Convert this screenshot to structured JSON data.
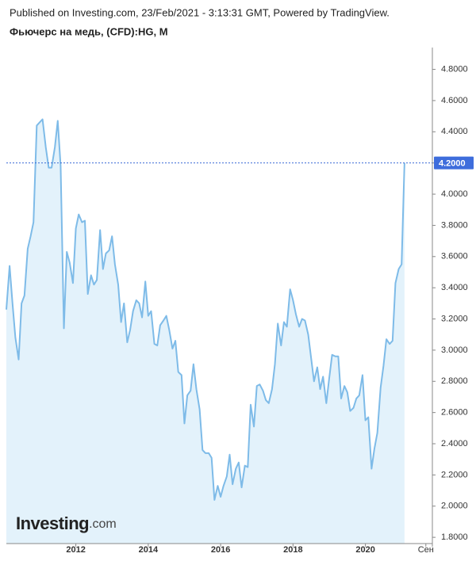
{
  "header": {
    "published": "Published on Investing.com, 23/Feb/2021 - 3:13:31 GMT, Powered by TradingView.",
    "title": "Фьючерс на медь, (CFD):HG, M"
  },
  "watermark": [
    "Investing",
    ".com"
  ],
  "chart_data": {
    "type": "line",
    "fill_area": true,
    "color": "#7ebbe8",
    "fill_color": "#e3f2fb",
    "x": [
      2010.08,
      2010.17,
      2010.25,
      2010.33,
      2010.42,
      2010.5,
      2010.58,
      2010.67,
      2010.75,
      2010.83,
      2010.92,
      2011,
      2011.08,
      2011.17,
      2011.25,
      2011.33,
      2011.42,
      2011.5,
      2011.58,
      2011.67,
      2011.75,
      2011.83,
      2011.92,
      2012,
      2012.08,
      2012.17,
      2012.25,
      2012.33,
      2012.42,
      2012.5,
      2012.58,
      2012.67,
      2012.75,
      2012.83,
      2012.92,
      2013,
      2013.08,
      2013.17,
      2013.25,
      2013.33,
      2013.42,
      2013.5,
      2013.58,
      2013.67,
      2013.75,
      2013.83,
      2013.92,
      2014,
      2014.08,
      2014.17,
      2014.25,
      2014.33,
      2014.42,
      2014.5,
      2014.58,
      2014.67,
      2014.75,
      2014.83,
      2014.92,
      2015,
      2015.08,
      2015.17,
      2015.25,
      2015.33,
      2015.42,
      2015.5,
      2015.58,
      2015.67,
      2015.75,
      2015.83,
      2015.92,
      2016,
      2016.08,
      2016.17,
      2016.25,
      2016.33,
      2016.42,
      2016.5,
      2016.58,
      2016.67,
      2016.75,
      2016.83,
      2016.92,
      2017,
      2017.08,
      2017.17,
      2017.25,
      2017.33,
      2017.42,
      2017.5,
      2017.58,
      2017.67,
      2017.75,
      2017.83,
      2017.92,
      2018,
      2018.08,
      2018.17,
      2018.25,
      2018.33,
      2018.42,
      2018.5,
      2018.58,
      2018.67,
      2018.75,
      2018.83,
      2018.92,
      2019,
      2019.08,
      2019.17,
      2019.25,
      2019.33,
      2019.42,
      2019.5,
      2019.58,
      2019.67,
      2019.75,
      2019.83,
      2019.92,
      2020,
      2020.08,
      2020.17,
      2020.25,
      2020.33,
      2020.42,
      2020.5,
      2020.58,
      2020.67,
      2020.75,
      2020.83,
      2020.92,
      2021,
      2021.08
    ],
    "values": [
      3.26,
      3.54,
      3.3,
      3.08,
      2.94,
      3.3,
      3.35,
      3.65,
      3.73,
      3.82,
      4.44,
      4.46,
      4.48,
      4.3,
      4.17,
      4.17,
      4.3,
      4.47,
      4.18,
      3.14,
      3.63,
      3.56,
      3.43,
      3.78,
      3.87,
      3.82,
      3.83,
      3.36,
      3.48,
      3.42,
      3.45,
      3.77,
      3.52,
      3.62,
      3.64,
      3.73,
      3.55,
      3.42,
      3.18,
      3.3,
      3.05,
      3.13,
      3.25,
      3.32,
      3.3,
      3.21,
      3.44,
      3.22,
      3.25,
      3.04,
      3.03,
      3.16,
      3.19,
      3.22,
      3.13,
      3.01,
      3.06,
      2.86,
      2.84,
      2.53,
      2.71,
      2.74,
      2.91,
      2.75,
      2.62,
      2.36,
      2.34,
      2.34,
      2.31,
      2.04,
      2.13,
      2.06,
      2.13,
      2.19,
      2.33,
      2.14,
      2.24,
      2.28,
      2.12,
      2.26,
      2.25,
      2.65,
      2.51,
      2.77,
      2.78,
      2.74,
      2.68,
      2.66,
      2.75,
      2.91,
      3.17,
      3.03,
      3.18,
      3.15,
      3.39,
      3.32,
      3.23,
      3.15,
      3.2,
      3.19,
      3.1,
      2.95,
      2.8,
      2.89,
      2.75,
      2.83,
      2.66,
      2.82,
      2.97,
      2.96,
      2.96,
      2.69,
      2.77,
      2.73,
      2.61,
      2.63,
      2.69,
      2.71,
      2.84,
      2.55,
      2.57,
      2.24,
      2.37,
      2.47,
      2.76,
      2.9,
      3.07,
      3.04,
      3.06,
      3.43,
      3.52,
      3.55,
      4.2
    ],
    "current_price": {
      "value": 4.2,
      "label": "4.2000"
    },
    "xlim": [
      2010.08,
      2021.85
    ],
    "xticks": [
      2012,
      2014,
      2016,
      2018,
      2020,
      {
        "value": 2021.67,
        "label": "Сен"
      }
    ],
    "ylim": [
      1.76,
      4.94
    ],
    "yticks": [
      {
        "value": 1.8,
        "label": "1.8000"
      },
      {
        "value": 2,
        "label": "2.0000"
      },
      {
        "value": 2.2,
        "label": "2.2000"
      },
      {
        "value": 2.4,
        "label": "2.4000"
      },
      {
        "value": 2.6,
        "label": "2.6000"
      },
      {
        "value": 2.8,
        "label": "2.8000"
      },
      {
        "value": 3,
        "label": "3.0000"
      },
      {
        "value": 3.2,
        "label": "3.2000"
      },
      {
        "value": 3.4,
        "label": "3.4000"
      },
      {
        "value": 3.6,
        "label": "3.6000"
      },
      {
        "value": 3.8,
        "label": "3.8000"
      },
      {
        "value": 4,
        "label": "4.0000"
      },
      {
        "value": 4.2,
        "label": "4.2000"
      },
      {
        "value": 4.4,
        "label": "4.4000"
      },
      {
        "value": 4.6,
        "label": "4.6000"
      },
      {
        "value": 4.8,
        "label": "4.8000"
      }
    ]
  }
}
